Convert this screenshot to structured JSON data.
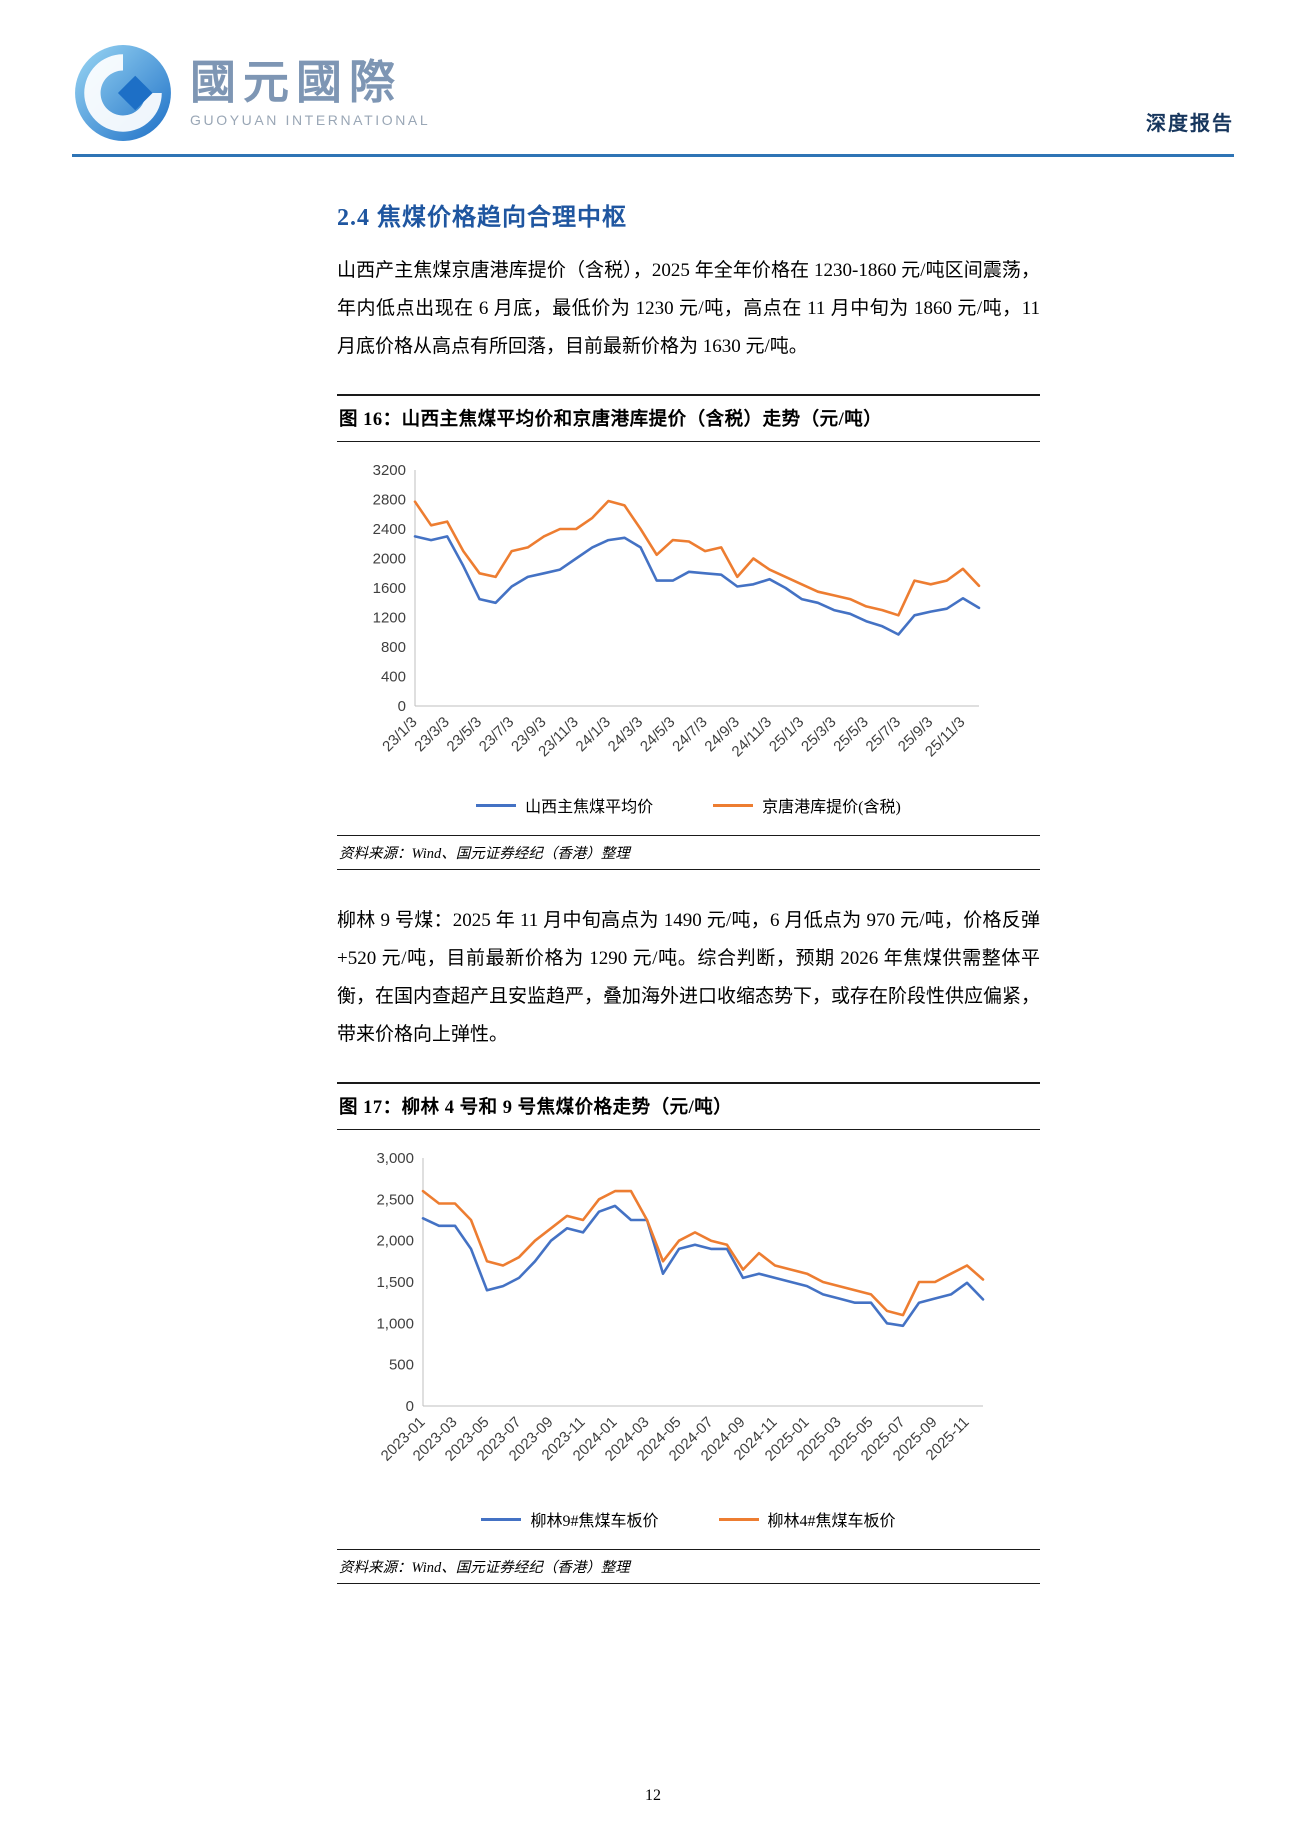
{
  "page": {
    "brand_cn": "國元國際",
    "brand_en": "GUOYUAN INTERNATIONAL",
    "header_right": "深度报告",
    "page_number": "12"
  },
  "section": {
    "title": "2.4  焦煤价格趋向合理中枢",
    "para1": "山西产主焦煤京唐港库提价（含税），2025 年全年价格在 1230-1860 元/吨区间震荡，年内低点出现在 6 月底，最低价为 1230 元/吨，高点在 11 月中旬为 1860 元/吨，11 月底价格从高点有所回落，目前最新价格为 1630 元/吨。",
    "para2": "柳林 9 号煤：2025 年 11 月中旬高点为 1490 元/吨，6 月低点为 970 元/吨，价格反弹+520 元/吨，目前最新价格为 1290 元/吨。综合判断，预期 2026 年焦煤供需整体平衡，在国内查超产且安监趋严，叠加海外进口收缩态势下，或存在阶段性供应偏紧，带来价格向上弹性。"
  },
  "figure16": {
    "title": "图 16：山西主焦煤平均价和京唐港库提价（含税）走势（元/吨）",
    "source": "资料来源：Wind、国元证券经纪（香港）整理"
  },
  "figure17": {
    "title": "图 17：柳林 4 号和 9 号焦煤价格走势（元/吨）",
    "source": "资料来源：Wind、国元证券经纪（香港）整理"
  },
  "colors": {
    "series_blue": "#4472C4",
    "series_orange": "#ED7D31",
    "heading_blue": "#1F56A0",
    "rule_blue": "#2E74B5",
    "doc_type_navy": "#17365D"
  },
  "chart_data": [
    {
      "type": "line",
      "title": "山西主焦煤平均价和京唐港库提价（含税）走势（元/吨）",
      "ylim": [
        0,
        3200
      ],
      "y_ticks": [
        0,
        400,
        800,
        1200,
        1600,
        2000,
        2400,
        2800,
        3200
      ],
      "y_tick_labels": [
        "0",
        "400",
        "800",
        "1200",
        "1600",
        "2000",
        "2400",
        "2800",
        "3200"
      ],
      "x_ticks": [
        "23/1/3",
        "23/3/3",
        "23/5/3",
        "23/7/3",
        "23/9/3",
        "23/11/3",
        "24/1/3",
        "24/3/3",
        "24/5/3",
        "24/7/3",
        "24/9/3",
        "24/11/3",
        "25/1/3",
        "25/3/3",
        "25/5/3",
        "25/7/3",
        "25/9/3",
        "25/11/3"
      ],
      "x_tick_step": 2,
      "grid": false,
      "legend_position": "bottom",
      "series": [
        {
          "name": "山西主焦煤平均价",
          "color": "#4472C4",
          "values": [
            2300,
            2250,
            2300,
            1900,
            1450,
            1400,
            1620,
            1750,
            1800,
            1850,
            2000,
            2150,
            2250,
            2280,
            2150,
            1700,
            1700,
            1820,
            1800,
            1780,
            1620,
            1650,
            1720,
            1600,
            1450,
            1400,
            1300,
            1250,
            1150,
            1080,
            970,
            1230,
            1280,
            1320,
            1460,
            1330
          ]
        },
        {
          "name": "京唐港库提价(含税)",
          "color": "#ED7D31",
          "values": [
            2770,
            2450,
            2500,
            2100,
            1800,
            1750,
            2100,
            2150,
            2300,
            2400,
            2400,
            2550,
            2780,
            2720,
            2400,
            2050,
            2250,
            2230,
            2100,
            2150,
            1750,
            2000,
            1850,
            1750,
            1650,
            1550,
            1500,
            1450,
            1350,
            1300,
            1230,
            1700,
            1650,
            1700,
            1860,
            1630
          ]
        }
      ]
    },
    {
      "type": "line",
      "title": "柳林 4 号和 9 号焦煤价格走势（元/吨）",
      "ylim": [
        0,
        3000
      ],
      "y_ticks": [
        0,
        500,
        1000,
        1500,
        2000,
        2500,
        3000
      ],
      "y_tick_labels": [
        "0",
        "500",
        "1,000",
        "1,500",
        "2,000",
        "2,500",
        "3,000"
      ],
      "x_ticks": [
        "2023-01",
        "2023-03",
        "2023-05",
        "2023-07",
        "2023-09",
        "2023-11",
        "2024-01",
        "2024-03",
        "2024-05",
        "2024-07",
        "2024-09",
        "2024-11",
        "2025-01",
        "2025-03",
        "2025-05",
        "2025-07",
        "2025-09",
        "2025-11"
      ],
      "x_tick_step": 2,
      "grid": false,
      "legend_position": "bottom",
      "series": [
        {
          "name": "柳林9#焦煤车板价",
          "color": "#4472C4",
          "values": [
            2270,
            2180,
            2180,
            1900,
            1400,
            1450,
            1550,
            1750,
            2000,
            2150,
            2100,
            2350,
            2420,
            2250,
            2250,
            1600,
            1900,
            1950,
            1900,
            1900,
            1550,
            1600,
            1550,
            1500,
            1450,
            1350,
            1300,
            1250,
            1250,
            1000,
            970,
            1250,
            1300,
            1350,
            1490,
            1290
          ]
        },
        {
          "name": "柳林4#焦煤车板价",
          "color": "#ED7D31",
          "values": [
            2600,
            2450,
            2450,
            2250,
            1750,
            1700,
            1800,
            2000,
            2150,
            2300,
            2250,
            2500,
            2600,
            2600,
            2250,
            1750,
            2000,
            2100,
            2000,
            1950,
            1650,
            1850,
            1700,
            1650,
            1600,
            1500,
            1450,
            1400,
            1350,
            1150,
            1100,
            1500,
            1500,
            1600,
            1700,
            1530
          ]
        }
      ]
    }
  ]
}
